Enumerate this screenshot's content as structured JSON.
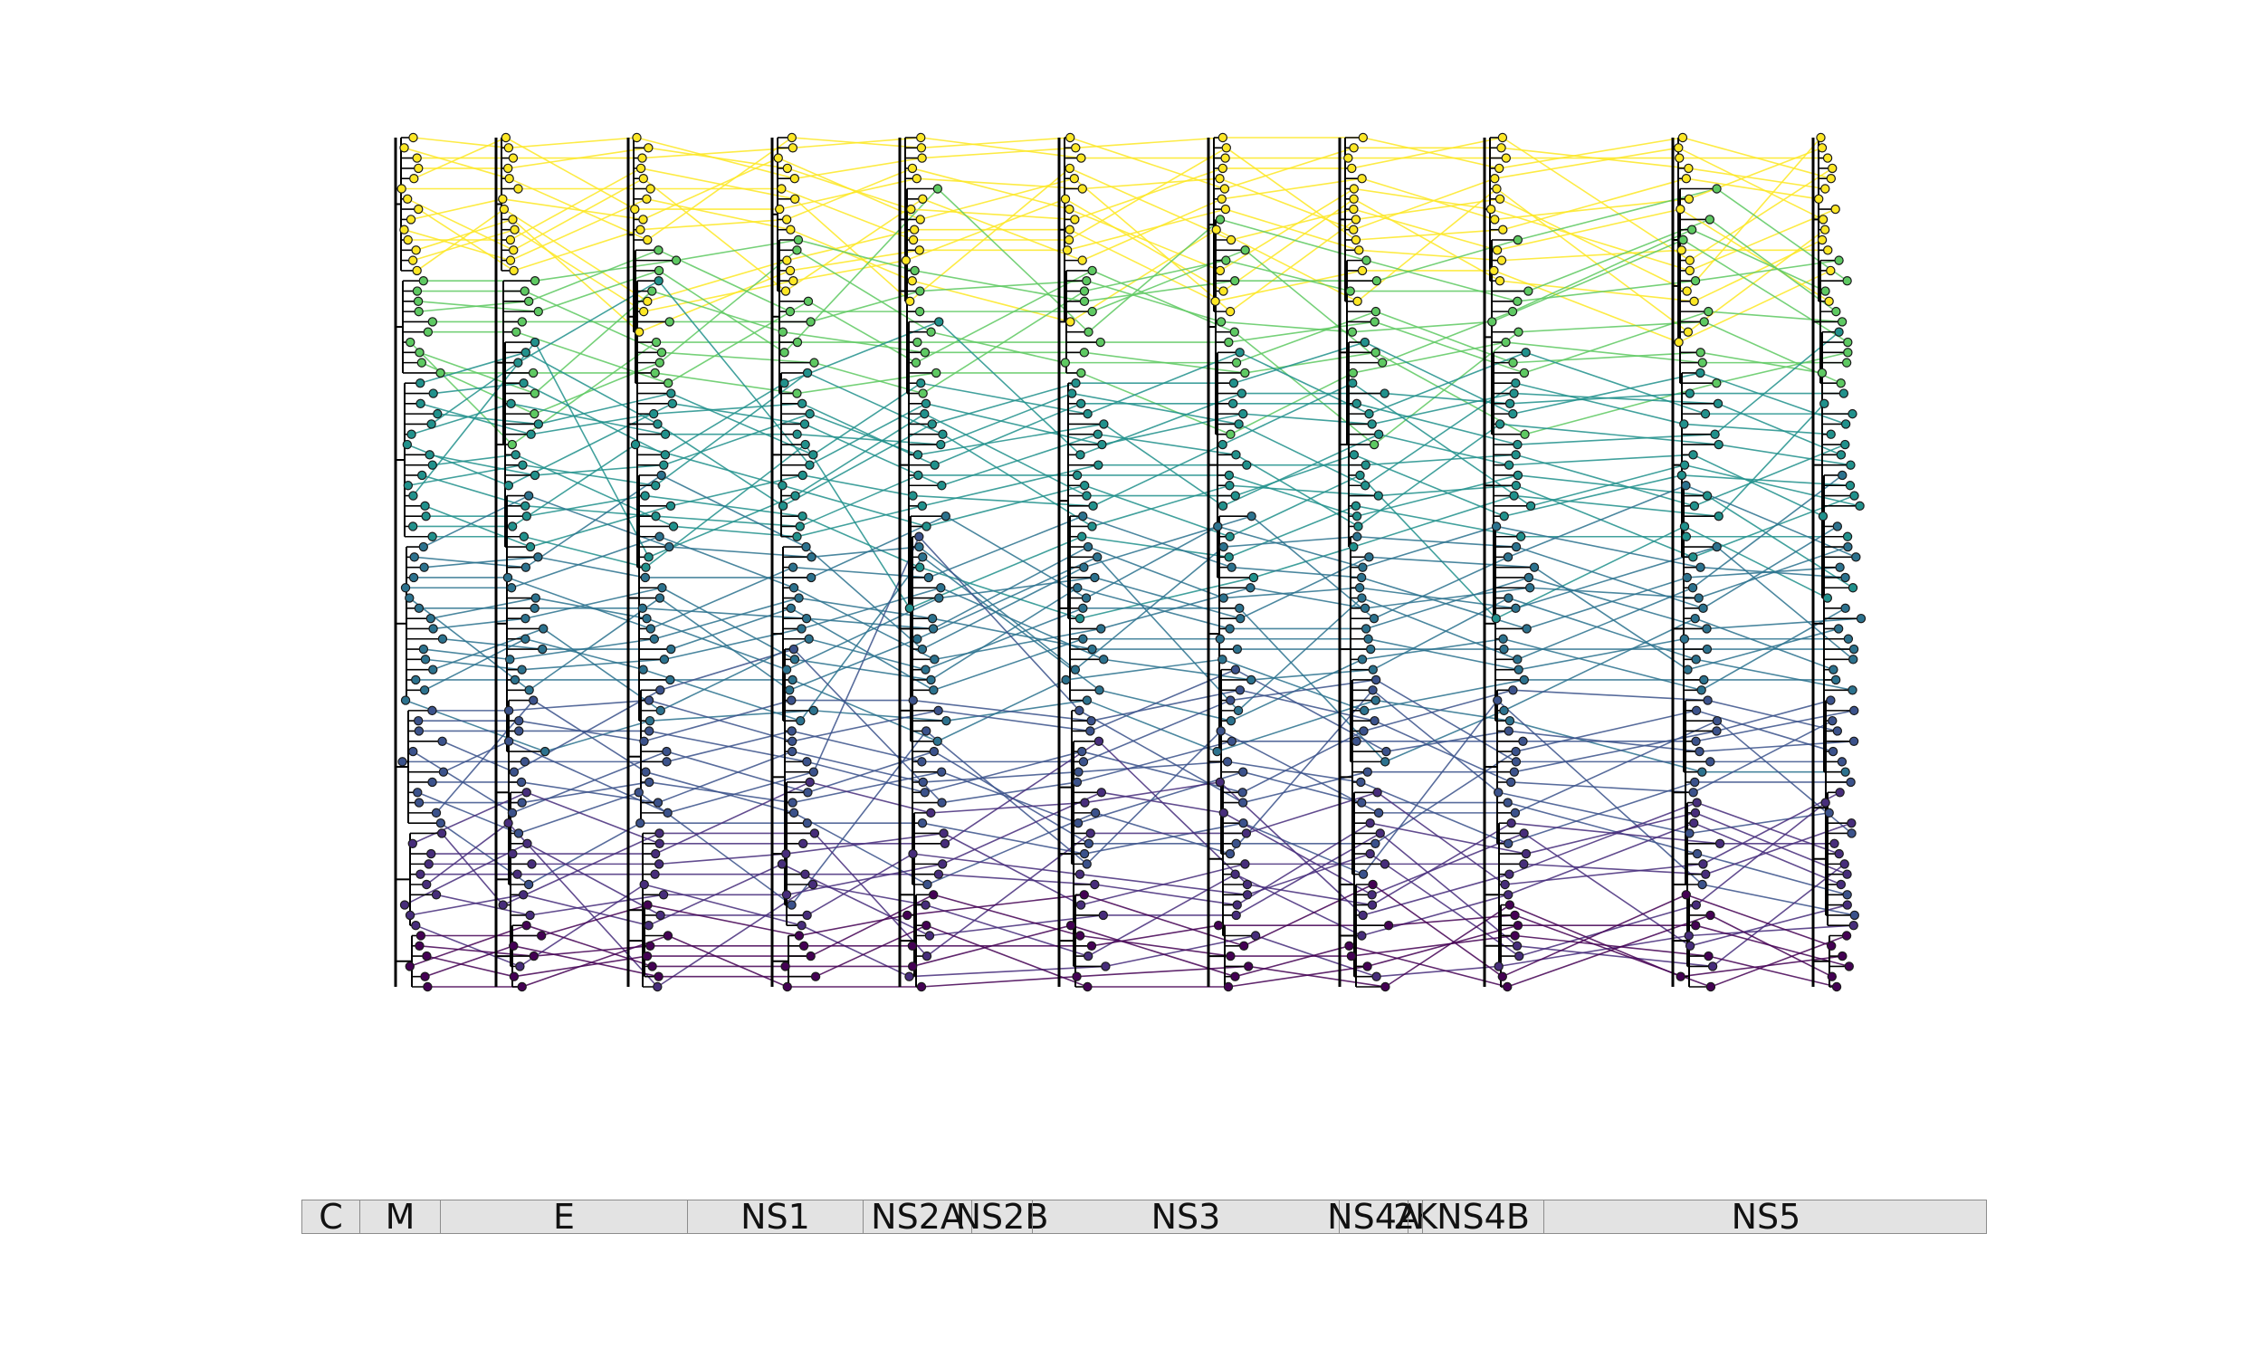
{
  "genes": [
    {
      "label": "C",
      "start": 0,
      "end": 63
    },
    {
      "label": "M",
      "start": 63,
      "end": 152
    },
    {
      "label": "E",
      "start": 152,
      "end": 425
    },
    {
      "label": "NS1",
      "start": 425,
      "end": 619
    },
    {
      "label": "NS2A",
      "start": 619,
      "end": 739
    },
    {
      "label": "NS2B",
      "start": 739,
      "end": 806
    },
    {
      "label": "NS3",
      "start": 806,
      "end": 1145
    },
    {
      "label": "NS4A",
      "start": 1145,
      "end": 1221
    },
    {
      "label": "2K",
      "start": 1221,
      "end": 1237
    },
    {
      "label": "NS4B",
      "start": 1237,
      "end": 1371
    },
    {
      "label": "NS5",
      "start": 1371,
      "end": 1862
    }
  ],
  "colors": {
    "palette": "viridis",
    "tree_branch": "#000000",
    "tip_outline": "#1a1a1a",
    "genome_bar_fill": "#e3e3e3",
    "genome_bar_border": "#8c8c8c"
  },
  "trees": {
    "count": 11,
    "tips_per_tree": 84,
    "clades": [
      {
        "name": "yellow",
        "color": "#fde725",
        "size": 14
      },
      {
        "name": "green",
        "color": "#5ec962",
        "size": 10
      },
      {
        "name": "teal",
        "color": "#21918c",
        "size": 16
      },
      {
        "name": "blue-teal",
        "color": "#2c728e",
        "size": 16
      },
      {
        "name": "blue",
        "color": "#3b528b",
        "size": 12
      },
      {
        "name": "indigo",
        "color": "#472d7b",
        "size": 10
      },
      {
        "name": "purple",
        "color": "#440154",
        "size": 6
      }
    ]
  }
}
